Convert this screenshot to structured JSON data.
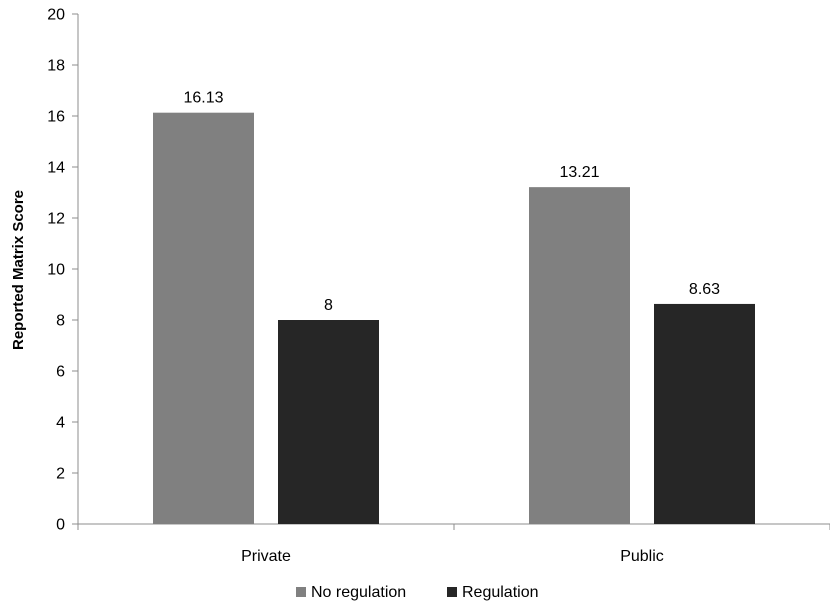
{
  "chart_data": {
    "type": "bar",
    "categories": [
      "Private",
      "Public"
    ],
    "series": [
      {
        "name": "No regulation",
        "values": [
          16.13,
          13.21
        ],
        "labels": [
          "16.13",
          "13.21"
        ],
        "color": "#808080"
      },
      {
        "name": "Regulation",
        "values": [
          8,
          8.63
        ],
        "labels": [
          "8",
          "8.63"
        ],
        "color": "#262626"
      }
    ],
    "ylabel": "Reported Matrix Score",
    "xlabel": "",
    "ylim": [
      0,
      20
    ],
    "yticks": [
      "0",
      "2",
      "4",
      "6",
      "8",
      "10",
      "12",
      "14",
      "16",
      "18",
      "20"
    ],
    "grid": false,
    "legend_position": "bottom"
  }
}
